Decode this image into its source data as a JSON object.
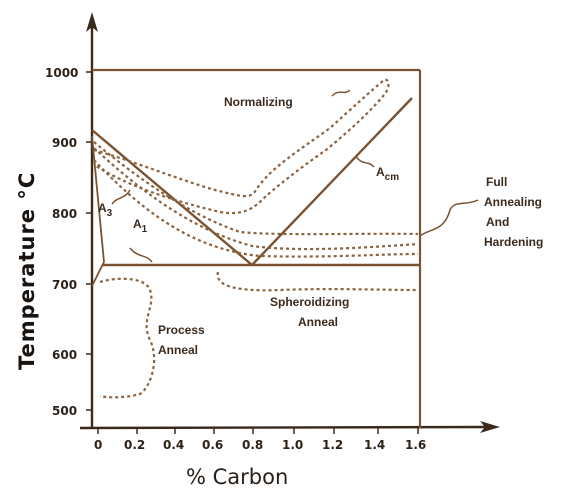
{
  "diagram": {
    "y_axis": {
      "title": "Temperature  °C",
      "ticks": [
        "1000",
        "900",
        "800",
        "700",
        "600",
        "500"
      ]
    },
    "x_axis": {
      "title": "% Carbon",
      "ticks": [
        "0",
        "0.2",
        "0.4",
        "0.6",
        "0.8",
        "1.0",
        "1.2",
        "1.4",
        "1.6"
      ]
    },
    "lines": {
      "a3": {
        "main": "A",
        "sub": "3"
      },
      "a1": {
        "main": "A",
        "sub": "1"
      },
      "acm": {
        "main": "A",
        "sub": "cm"
      }
    },
    "regions": {
      "normalizing": "Normalizing",
      "full_annealing": [
        "Full",
        "Annealing",
        "And",
        "Hardening"
      ],
      "spheroidizing": [
        "Spheroidizing",
        "Anneal"
      ],
      "process": [
        "Process",
        "Anneal"
      ]
    },
    "colors": {
      "ink": "#7a5232",
      "axis": "#3a2a1c",
      "text": "#3b2a1e"
    }
  }
}
